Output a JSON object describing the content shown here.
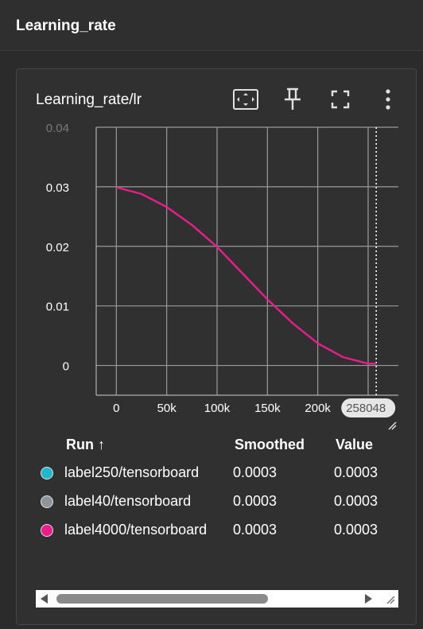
{
  "section": {
    "title": "Learning_rate"
  },
  "card": {
    "title": "Learning_rate/lr",
    "toolbar": {
      "fit_icon": "fit-domain-icon",
      "pin_icon": "pin-icon",
      "fullscreen_icon": "fullscreen-icon",
      "more_icon": "more-vert-icon"
    }
  },
  "chart_data": {
    "type": "line",
    "title": "",
    "xlabel": "",
    "ylabel": "",
    "xlim": [
      -20000,
      280000
    ],
    "ylim": [
      -0.005,
      0.04
    ],
    "x_ticks": [
      0,
      50000,
      100000,
      150000,
      200000
    ],
    "x_tick_labels": [
      "0",
      "50k",
      "100k",
      "150k",
      "200k"
    ],
    "y_ticks": [
      0,
      0.01,
      0.02,
      0.03,
      0.04
    ],
    "y_tick_labels": [
      "0",
      "0.01",
      "0.02",
      "0.03",
      "0.04"
    ],
    "grid": true,
    "cursor": {
      "x": 258048,
      "label": "258048"
    },
    "series": [
      {
        "color": "#e91e8c",
        "x": [
          0,
          25000,
          50000,
          75000,
          100000,
          125000,
          150000,
          175000,
          200000,
          225000,
          250000,
          258048
        ],
        "y": [
          0.0299,
          0.0288,
          0.0266,
          0.0236,
          0.0199,
          0.0155,
          0.0111,
          0.0071,
          0.0037,
          0.0014,
          0.0003,
          0.0003
        ]
      }
    ]
  },
  "table": {
    "headers": {
      "run": "Run ↑",
      "smoothed": "Smoothed",
      "value": "Value"
    },
    "rows": [
      {
        "name": "label250/tensorboard",
        "smoothed": "0.0003",
        "value": "0.0003",
        "color": "#1fb8d0"
      },
      {
        "name": "label40/tensorboard",
        "smoothed": "0.0003",
        "value": "0.0003",
        "color": "#8f959d"
      },
      {
        "name": "label4000/tensorboard",
        "smoothed": "0.0003",
        "value": "0.0003",
        "color": "#e91e8c"
      }
    ]
  }
}
